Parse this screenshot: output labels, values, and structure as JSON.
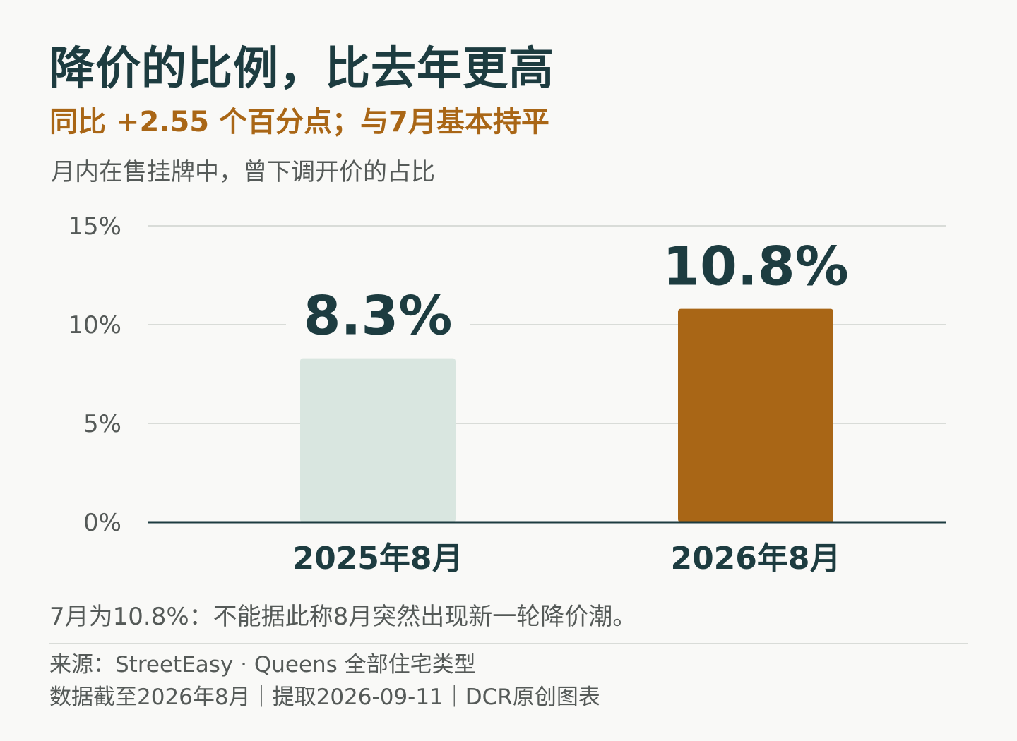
{
  "header": {
    "title": "降价的比例，比去年更高",
    "subtitle": "同比 +2.55 个百分点；与7月基本持平",
    "description": "月内在售挂牌中，曾下调开价的占比"
  },
  "chart_data": {
    "type": "bar",
    "categories": [
      "2025年8月",
      "2026年8月"
    ],
    "values": [
      8.3,
      10.8
    ],
    "value_labels": [
      "8.3%",
      "10.8%"
    ],
    "bar_colors": [
      "#d9e6e0",
      "#a96616"
    ],
    "ylim": [
      0,
      15
    ],
    "yticks": [
      0,
      5,
      10,
      15
    ],
    "ytick_labels": [
      "0%",
      "5%",
      "10%",
      "15%"
    ],
    "grid": true,
    "colors": {
      "text": "#1d3c40",
      "tick": "#555a58",
      "grid": "#d9dcd8",
      "axis": "#1d3c40"
    }
  },
  "notes": {
    "annotation": "7月为10.8%：不能据此称8月突然出现新一轮降价潮。",
    "source": "来源：StreetEasy · Queens 全部住宅类型",
    "footer": "数据截至2026年8月｜提取2026-09-11｜DCR原创图表"
  }
}
